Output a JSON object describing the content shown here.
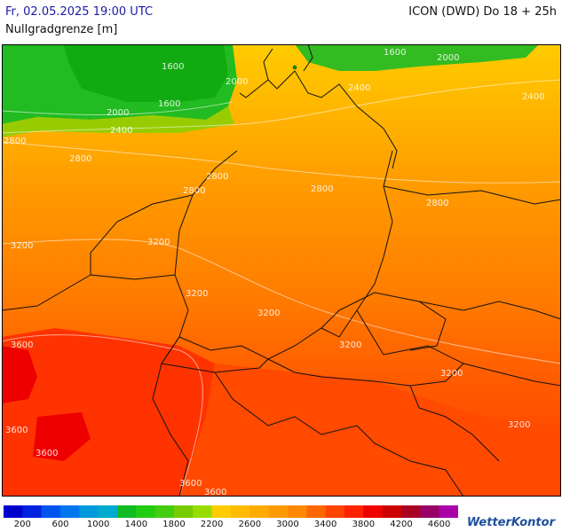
{
  "header": {
    "datetime": "Fr, 02.05.2025 19:00 UTC",
    "model": "ICON (DWD) Do 18 + 25h",
    "parameter": "Nullgradgrenze [m]"
  },
  "map": {
    "contour_labels": [
      "1600",
      "1600",
      "1600",
      "2000",
      "2000",
      "2000",
      "2400",
      "2400",
      "2400",
      "2800",
      "2800",
      "2800",
      "2800",
      "2800",
      "2800",
      "3200",
      "3200",
      "3200",
      "3200",
      "3200",
      "3200",
      "3200",
      "3600",
      "3600",
      "3600",
      "3600",
      "3600"
    ],
    "colors": {
      "low_green": "#33bb22",
      "mid_yellow": "#ffcc00",
      "orange": "#ff9900",
      "dark_orange": "#ff6f00",
      "red_orange": "#ff4400",
      "red": "#ff2200"
    }
  },
  "legend": {
    "colors": [
      "#0000cc",
      "#0022dd",
      "#0055ee",
      "#0077ee",
      "#0099dd",
      "#00aacc",
      "#11bb22",
      "#22cc11",
      "#44cc11",
      "#77cc00",
      "#99dd00",
      "#ffcc00",
      "#ffbb00",
      "#ffaa00",
      "#ff9900",
      "#ff8800",
      "#ff6600",
      "#ff4400",
      "#ff2200",
      "#ee0000",
      "#cc0000",
      "#aa0022",
      "#990066",
      "#aa00aa"
    ],
    "labels": [
      "200",
      "600",
      "1000",
      "1400",
      "1800",
      "2200",
      "2600",
      "3000",
      "3400",
      "3800",
      "4200",
      "4600"
    ]
  },
  "brand": {
    "name": "WetterKontor"
  }
}
